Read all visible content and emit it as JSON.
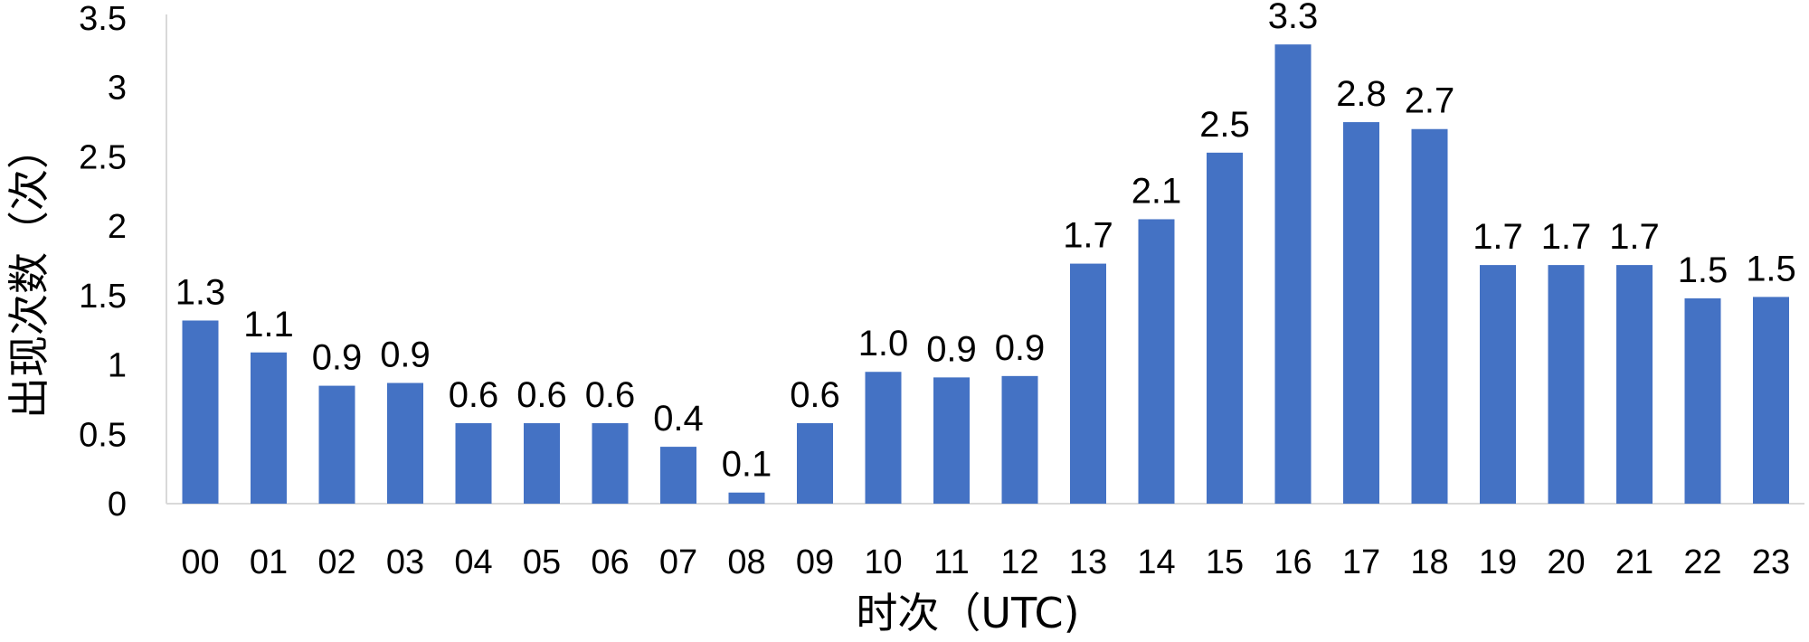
{
  "chart_data": {
    "type": "bar",
    "title": "",
    "xlabel": "时次（UTC)",
    "ylabel": "出现次数（次）",
    "categories": [
      "00",
      "01",
      "02",
      "03",
      "04",
      "05",
      "06",
      "07",
      "08",
      "09",
      "10",
      "11",
      "12",
      "13",
      "14",
      "15",
      "16",
      "17",
      "18",
      "19",
      "20",
      "21",
      "22",
      "23"
    ],
    "values": [
      1.32,
      1.09,
      0.85,
      0.87,
      0.58,
      0.58,
      0.58,
      0.41,
      0.08,
      0.58,
      0.95,
      0.91,
      0.92,
      1.73,
      2.05,
      2.53,
      3.31,
      2.75,
      2.7,
      1.72,
      1.72,
      1.72,
      1.48,
      1.49
    ],
    "data_labels": [
      "1.3",
      "1.1",
      "0.9",
      "0.9",
      "0.6",
      "0.6",
      "0.6",
      "0.4",
      "0.1",
      "0.6",
      "1.0",
      "0.9",
      "0.9",
      "1.7",
      "2.1",
      "2.5",
      "3.3",
      "2.8",
      "2.7",
      "1.7",
      "1.7",
      "1.7",
      "1.5",
      "1.5"
    ],
    "ylim": [
      0,
      3.5
    ],
    "yticks": [
      0,
      0.5,
      1,
      1.5,
      2,
      2.5,
      3,
      3.5
    ],
    "ytick_labels": [
      "0",
      "0.5",
      "1",
      "1.5",
      "2",
      "2.5",
      "3",
      "3.5"
    ],
    "grid": false,
    "legend": "none",
    "bar_color": "#4472C4",
    "axis_color": "#D9D9D9"
  }
}
